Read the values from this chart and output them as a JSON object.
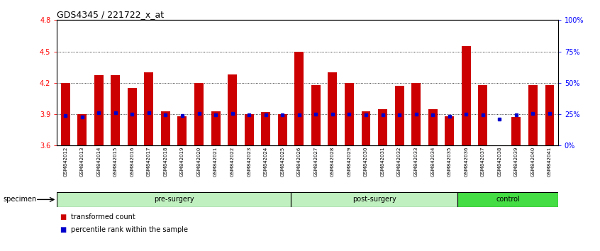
{
  "title": "GDS4345 / 221722_x_at",
  "samples": [
    "GSM842012",
    "GSM842013",
    "GSM842014",
    "GSM842015",
    "GSM842016",
    "GSM842017",
    "GSM842018",
    "GSM842019",
    "GSM842020",
    "GSM842021",
    "GSM842022",
    "GSM842023",
    "GSM842024",
    "GSM842025",
    "GSM842026",
    "GSM842027",
    "GSM842028",
    "GSM842029",
    "GSM842030",
    "GSM842031",
    "GSM842032",
    "GSM842033",
    "GSM842034",
    "GSM842035",
    "GSM842036",
    "GSM842037",
    "GSM842038",
    "GSM842039",
    "GSM842040",
    "GSM842041"
  ],
  "bar_heights": [
    4.2,
    3.9,
    4.27,
    4.27,
    4.15,
    4.3,
    3.93,
    3.88,
    4.2,
    3.93,
    4.28,
    3.9,
    3.92,
    3.9,
    4.5,
    4.18,
    4.3,
    4.2,
    3.93,
    3.95,
    4.17,
    4.2,
    3.95,
    3.88,
    4.55,
    4.18,
    3.6,
    3.87,
    4.18,
    4.18
  ],
  "blue_dot_values": [
    3.885,
    3.875,
    3.915,
    3.915,
    3.9,
    3.915,
    3.895,
    3.885,
    3.905,
    3.895,
    3.905,
    3.895,
    3.895,
    3.895,
    3.895,
    3.9,
    3.9,
    3.9,
    3.895,
    3.895,
    3.895,
    3.9,
    3.895,
    3.88,
    3.9,
    3.895,
    3.855,
    3.895,
    3.905,
    3.905
  ],
  "groups": [
    {
      "label": "pre-surgery",
      "start": 0,
      "end": 14,
      "color": "#b8f0b8"
    },
    {
      "label": "post-surgery",
      "start": 14,
      "end": 24,
      "color": "#b8f0b8"
    },
    {
      "label": "control",
      "start": 24,
      "end": 30,
      "color": "#44dd44"
    }
  ],
  "ylim": [
    3.6,
    4.8
  ],
  "yticks_left": [
    3.6,
    3.9,
    4.2,
    4.5,
    4.8
  ],
  "ytick_labels_left": [
    "3.6",
    "3.9",
    "4.2",
    "4.5",
    "4.8"
  ],
  "grid_values": [
    3.9,
    4.2,
    4.5
  ],
  "bar_color": "#CC0000",
  "dot_color": "#0000CC",
  "bar_width": 0.55,
  "specimen_label": "specimen"
}
